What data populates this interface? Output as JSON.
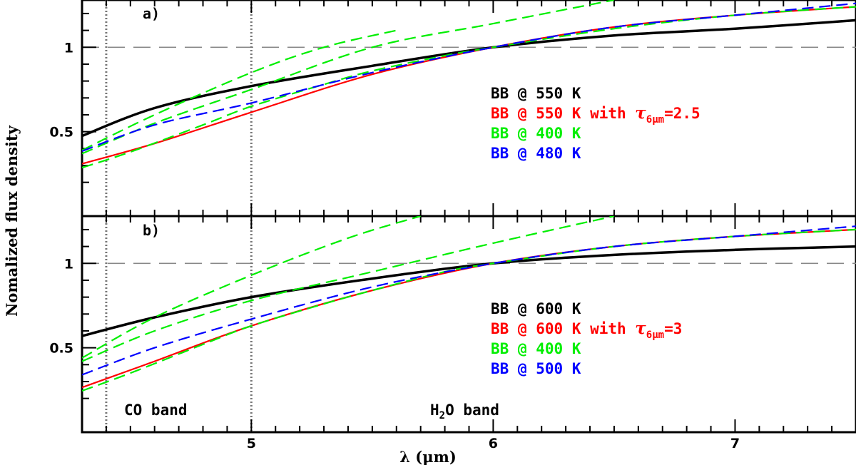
{
  "chart_data": [
    {
      "type": "line",
      "panel_label": "a)",
      "xlabel": "λ (μm)",
      "ylabel": "Nomalized flux density",
      "xlim": [
        4.3,
        7.5
      ],
      "ylim": [
        0.0,
        1.28
      ],
      "xticks": [
        5,
        6,
        7
      ],
      "yticks": [
        0.5,
        1
      ],
      "y_tick_labels": [
        "0.5",
        "1"
      ],
      "grid": false,
      "reference_line": {
        "y": 1,
        "style": "dashed",
        "color": "#888888"
      },
      "vertical_markers": [
        {
          "x": 4.4,
          "style": "dotted"
        },
        {
          "x": 5.0,
          "style": "dotted"
        }
      ],
      "legend_placement": "right",
      "series": [
        {
          "name": "BB @ 550 K",
          "color": "#000000",
          "style": "solid",
          "x": [
            4.3,
            4.6,
            5.0,
            5.5,
            6.0,
            6.5,
            7.0,
            7.5
          ],
          "y": [
            0.475,
            0.64,
            0.77,
            0.89,
            1.0,
            1.07,
            1.11,
            1.16
          ]
        },
        {
          "name": "BB @ 550 K with τ",
          "subscript": "6μm",
          "suffix": "=2.5",
          "color": "#ff0000",
          "style": "solid",
          "x": [
            4.3,
            4.6,
            5.0,
            5.5,
            6.0,
            6.5,
            7.0,
            7.5
          ],
          "y": [
            0.31,
            0.43,
            0.615,
            0.84,
            1.0,
            1.12,
            1.19,
            1.24
          ]
        },
        {
          "name": "BB @ 400 K",
          "color": "#00ee00",
          "style": "dashed",
          "x": [
            4.3,
            4.5,
            4.8,
            5.0,
            5.3,
            5.5,
            5.8,
            6.0,
            6.5,
            7.0,
            7.5
          ],
          "y": [
            0.287,
            0.38,
            0.54,
            0.65,
            0.78,
            0.86,
            0.95,
            1.0,
            1.11,
            1.19,
            1.24
          ]
        },
        {
          "name": "BB @ 400 K",
          "color": "#00ee00",
          "style": "dashed",
          "x": [
            4.3,
            4.6,
            5.0,
            5.3,
            5.6
          ],
          "y": [
            0.39,
            0.6,
            0.85,
            1.0,
            1.1
          ]
        },
        {
          "name": "BB @ 400 K",
          "color": "#00ee00",
          "style": "dashed",
          "x": [
            4.3,
            4.6,
            5.0,
            5.5,
            6.0,
            6.5
          ],
          "y": [
            0.37,
            0.55,
            0.75,
            1.0,
            1.14,
            1.28
          ]
        },
        {
          "name": "BB @ 480 K",
          "color": "#0000ff",
          "style": "dashed",
          "x": [
            4.3,
            4.6,
            5.0,
            5.5,
            6.0,
            6.5,
            7.0,
            7.5
          ],
          "y": [
            0.385,
            0.54,
            0.67,
            0.85,
            1.0,
            1.12,
            1.19,
            1.26
          ]
        }
      ]
    },
    {
      "type": "line",
      "panel_label": "b)",
      "xlabel": "λ (μm)",
      "ylabel": "Nomalized flux density",
      "xlim": [
        4.3,
        7.5
      ],
      "ylim": [
        0.0,
        1.28
      ],
      "xticks": [
        5,
        6,
        7
      ],
      "yticks": [
        0.5,
        1
      ],
      "y_tick_labels": [
        "0.5",
        "1"
      ],
      "grid": false,
      "reference_line": {
        "y": 1,
        "style": "dashed",
        "color": "#888888"
      },
      "vertical_markers": [
        {
          "x": 4.4,
          "style": "dotted"
        },
        {
          "x": 5.0,
          "style": "dotted"
        }
      ],
      "legend_placement": "right",
      "series": [
        {
          "name": "BB @ 600 K",
          "color": "#000000",
          "style": "solid",
          "x": [
            4.3,
            4.6,
            5.0,
            5.5,
            6.0,
            6.5,
            7.0,
            7.5
          ],
          "y": [
            0.57,
            0.68,
            0.8,
            0.91,
            1.0,
            1.05,
            1.08,
            1.1
          ]
        },
        {
          "name": "BB @ 600 K with τ",
          "subscript": "6μm",
          "suffix": "=3",
          "color": "#ff0000",
          "style": "solid",
          "x": [
            4.3,
            4.6,
            5.0,
            5.5,
            6.0,
            6.5,
            7.0,
            7.5
          ],
          "y": [
            0.265,
            0.42,
            0.63,
            0.84,
            1.0,
            1.1,
            1.16,
            1.2
          ]
        },
        {
          "name": "BB @ 400 K",
          "color": "#00ee00",
          "style": "dashed",
          "x": [
            4.3,
            4.5,
            4.8,
            5.0,
            5.3,
            5.5,
            5.8,
            6.0,
            6.5,
            7.0,
            7.5
          ],
          "y": [
            0.245,
            0.35,
            0.52,
            0.63,
            0.76,
            0.84,
            0.95,
            1.0,
            1.1,
            1.16,
            1.2
          ]
        },
        {
          "name": "BB @ 400 K",
          "color": "#00ee00",
          "style": "dashed",
          "x": [
            4.3,
            4.6,
            5.0,
            5.4,
            5.7
          ],
          "y": [
            0.44,
            0.68,
            0.93,
            1.15,
            1.28
          ]
        },
        {
          "name": "BB @ 400 K",
          "color": "#00ee00",
          "style": "dashed",
          "x": [
            4.3,
            4.6,
            5.0,
            5.5,
            6.0,
            6.5
          ],
          "y": [
            0.42,
            0.6,
            0.78,
            0.95,
            1.12,
            1.28
          ]
        },
        {
          "name": "BB @ 500 K",
          "color": "#0000ff",
          "style": "dashed",
          "x": [
            4.3,
            4.6,
            5.0,
            5.5,
            6.0,
            6.5,
            7.0,
            7.5
          ],
          "y": [
            0.34,
            0.5,
            0.67,
            0.86,
            1.0,
            1.1,
            1.16,
            1.22
          ]
        }
      ]
    }
  ],
  "legends": [
    [
      {
        "text": "BB @ 550 K",
        "color": "#000000"
      },
      {
        "text": "BB @ 550 K with ",
        "tau": "τ",
        "subscript": "6μm",
        "suffix": "=2.5",
        "color": "#ff0000"
      },
      {
        "text": "BB @ 400 K",
        "color": "#00ee00"
      },
      {
        "text": "BB @ 480 K",
        "color": "#0000ff"
      }
    ],
    [
      {
        "text": "BB @ 600 K",
        "color": "#000000"
      },
      {
        "text": "BB @ 600 K with ",
        "tau": "τ",
        "subscript": "6μm",
        "suffix": "=3",
        "color": "#ff0000"
      },
      {
        "text": "BB @ 400 K",
        "color": "#00ee00"
      },
      {
        "text": "BB @ 500 K",
        "color": "#0000ff"
      }
    ]
  ],
  "band_labels": {
    "co": "CO band",
    "h2o_prefix": "H",
    "h2o_sub": "2",
    "h2o_suffix": "O band"
  },
  "axis": {
    "xlabel_text": "λ (μm)",
    "ylabel_text": "Nomalized flux density",
    "x_tick_labels": [
      "5",
      "6",
      "7"
    ]
  }
}
